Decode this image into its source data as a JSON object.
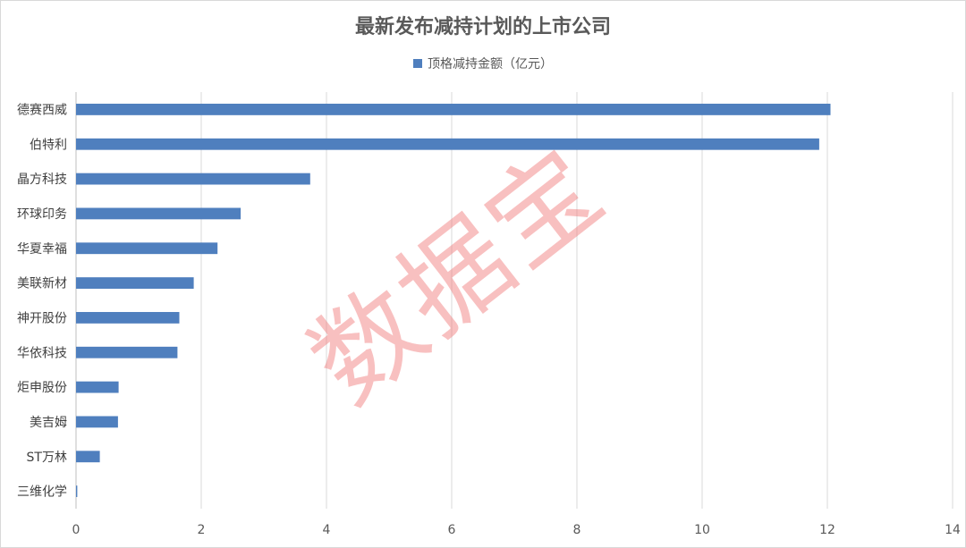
{
  "chart_data": {
    "type": "bar",
    "orientation": "horizontal",
    "title": "最新发布减持计划的上市公司",
    "categories": [
      "德赛西威",
      "伯特利",
      "晶方科技",
      "环球印务",
      "华夏幸福",
      "美联新材",
      "神开股份",
      "华依科技",
      "炬申股份",
      "美吉姆",
      "ST万林",
      "三维化学"
    ],
    "series": [
      {
        "name": "顶格减持金额（亿元）",
        "values": [
          12.05,
          11.87,
          3.74,
          2.63,
          2.26,
          1.88,
          1.65,
          1.62,
          0.68,
          0.67,
          0.38,
          0.02
        ]
      }
    ],
    "xlim": [
      0,
      14
    ],
    "xticks": [
      "0",
      "2",
      "4",
      "6",
      "8",
      "10",
      "12",
      "14"
    ],
    "grid": true,
    "legend_position": "top-center",
    "bar_color": "#4f7fbe"
  },
  "watermark": "数据宝"
}
